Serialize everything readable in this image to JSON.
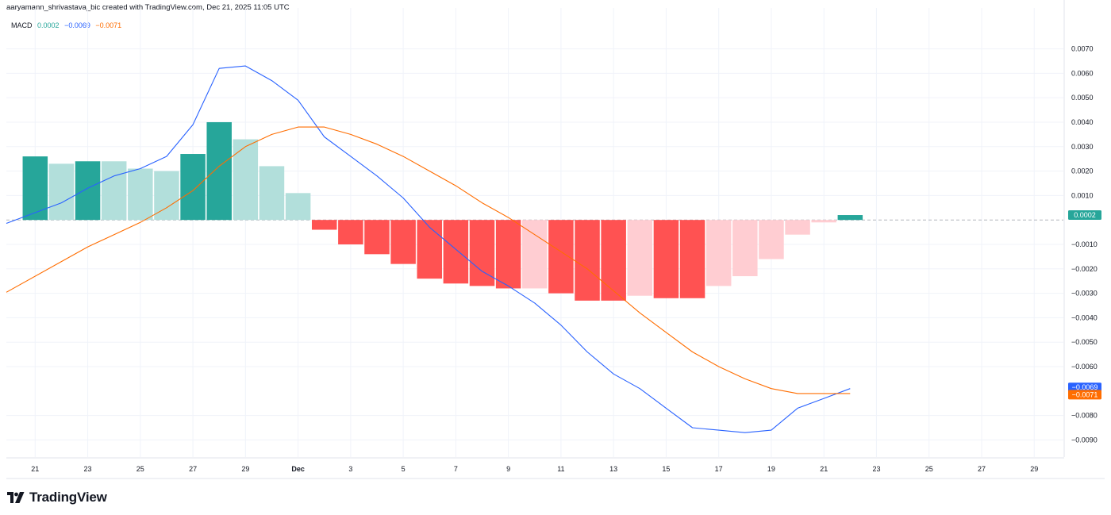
{
  "header": {
    "credit": "aaryamann_shrivastava_bic created with TradingView.com, Dec 21, 2025 11:05 UTC"
  },
  "legend": {
    "name": "MACD",
    "hist_value": "0.0002",
    "macd_value": "−0.0069",
    "signal_value": "−0.0071"
  },
  "brand": {
    "name": "TradingView",
    "logo_icon": "tradingview-logo-icon"
  },
  "colors": {
    "macd_line": "#2962ff",
    "signal_line": "#ff6d00",
    "hist_pos_strong": "#26a69a",
    "hist_pos_weak": "#b2dfdb",
    "hist_neg_strong": "#ff5252",
    "hist_neg_weak": "#ffcdd2",
    "hist_legend": "#26a69a"
  },
  "chart_data": {
    "type": "bar",
    "indicator": "MACD",
    "grid": true,
    "ylim": [
      -0.0097,
      0.0077
    ],
    "yticks": [
      "0.0070",
      "0.0060",
      "0.0050",
      "0.0040",
      "0.0030",
      "0.0020",
      "0.0010",
      "−0.0010",
      "−0.0020",
      "−0.0030",
      "−0.0040",
      "−0.0050",
      "−0.0060",
      "−0.0080",
      "−0.0090"
    ],
    "ytick_values": [
      0.007,
      0.006,
      0.005,
      0.004,
      0.003,
      0.002,
      0.001,
      -0.001,
      -0.002,
      -0.003,
      -0.004,
      -0.005,
      -0.006,
      -0.008,
      -0.009
    ],
    "xticks": [
      {
        "label": "21",
        "i": 0
      },
      {
        "label": "23",
        "i": 2
      },
      {
        "label": "25",
        "i": 4
      },
      {
        "label": "27",
        "i": 6
      },
      {
        "label": "29",
        "i": 8
      },
      {
        "label": "Dec",
        "i": 10
      },
      {
        "label": "3",
        "i": 12
      },
      {
        "label": "5",
        "i": 14
      },
      {
        "label": "7",
        "i": 16
      },
      {
        "label": "9",
        "i": 18
      },
      {
        "label": "11",
        "i": 20
      },
      {
        "label": "13",
        "i": 22
      },
      {
        "label": "15",
        "i": 24
      },
      {
        "label": "17",
        "i": 26
      },
      {
        "label": "19",
        "i": 28
      },
      {
        "label": "21",
        "i": 30
      },
      {
        "label": "23",
        "i": 32
      },
      {
        "label": "25",
        "i": 34
      },
      {
        "label": "27",
        "i": 36
      },
      {
        "label": "29",
        "i": 38
      }
    ],
    "histogram": [
      0.0026,
      0.0023,
      0.0024,
      0.0024,
      0.0021,
      0.002,
      0.0027,
      0.004,
      0.0033,
      0.0022,
      0.0011,
      -0.0004,
      -0.001,
      -0.0014,
      -0.0018,
      -0.0024,
      -0.0026,
      -0.0027,
      -0.0028,
      -0.0028,
      -0.003,
      -0.0033,
      -0.0033,
      -0.0031,
      -0.0032,
      -0.0032,
      -0.0027,
      -0.0023,
      -0.0016,
      -0.0006,
      -0.0001,
      0.0002
    ],
    "histogram_shade": [
      "strong",
      "weak",
      "strong",
      "weak",
      "weak",
      "weak",
      "strong",
      "strong",
      "weak",
      "weak",
      "weak",
      "strong",
      "strong",
      "strong",
      "strong",
      "strong",
      "strong",
      "strong",
      "strong",
      "weak",
      "strong",
      "strong",
      "strong",
      "weak",
      "strong",
      "strong",
      "weak",
      "weak",
      "weak",
      "weak",
      "weak",
      "strong"
    ],
    "series": [
      {
        "name": "MACD",
        "color": "#2962ff",
        "values": [
          0.0003,
          0.0007,
          0.0013,
          0.0018,
          0.0021,
          0.0026,
          0.0039,
          0.0062,
          0.0063,
          0.0057,
          0.0049,
          0.0034,
          0.0026,
          0.0018,
          0.0009,
          -0.0003,
          -0.0012,
          -0.0021,
          -0.0027,
          -0.0034,
          -0.0043,
          -0.0054,
          -0.0063,
          -0.0069,
          -0.0077,
          -0.0085,
          -0.0086,
          -0.0087,
          -0.0086,
          -0.0077,
          -0.0073,
          -0.0069
        ]
      },
      {
        "name": "Signal",
        "color": "#ff6d00",
        "values": [
          -0.0023,
          -0.0017,
          -0.0011,
          -0.0006,
          -0.0001,
          0.0005,
          0.0012,
          0.0022,
          0.003,
          0.0035,
          0.0038,
          0.0038,
          0.0035,
          0.0031,
          0.0026,
          0.002,
          0.0014,
          0.0007,
          0.0001,
          -0.0006,
          -0.0013,
          -0.002,
          -0.0029,
          -0.0038,
          -0.0046,
          -0.0054,
          -0.006,
          -0.0065,
          -0.0069,
          -0.0071,
          -0.0071,
          -0.0071
        ]
      }
    ],
    "last_labels": [
      {
        "text": "0.0002",
        "value": 0.0002,
        "color": "#26a69a"
      },
      {
        "text": "−0.0069",
        "value": -0.0069,
        "color": "#2962ff"
      },
      {
        "text": "−0.0071",
        "value": -0.0071,
        "color": "#ff6d00"
      }
    ]
  }
}
